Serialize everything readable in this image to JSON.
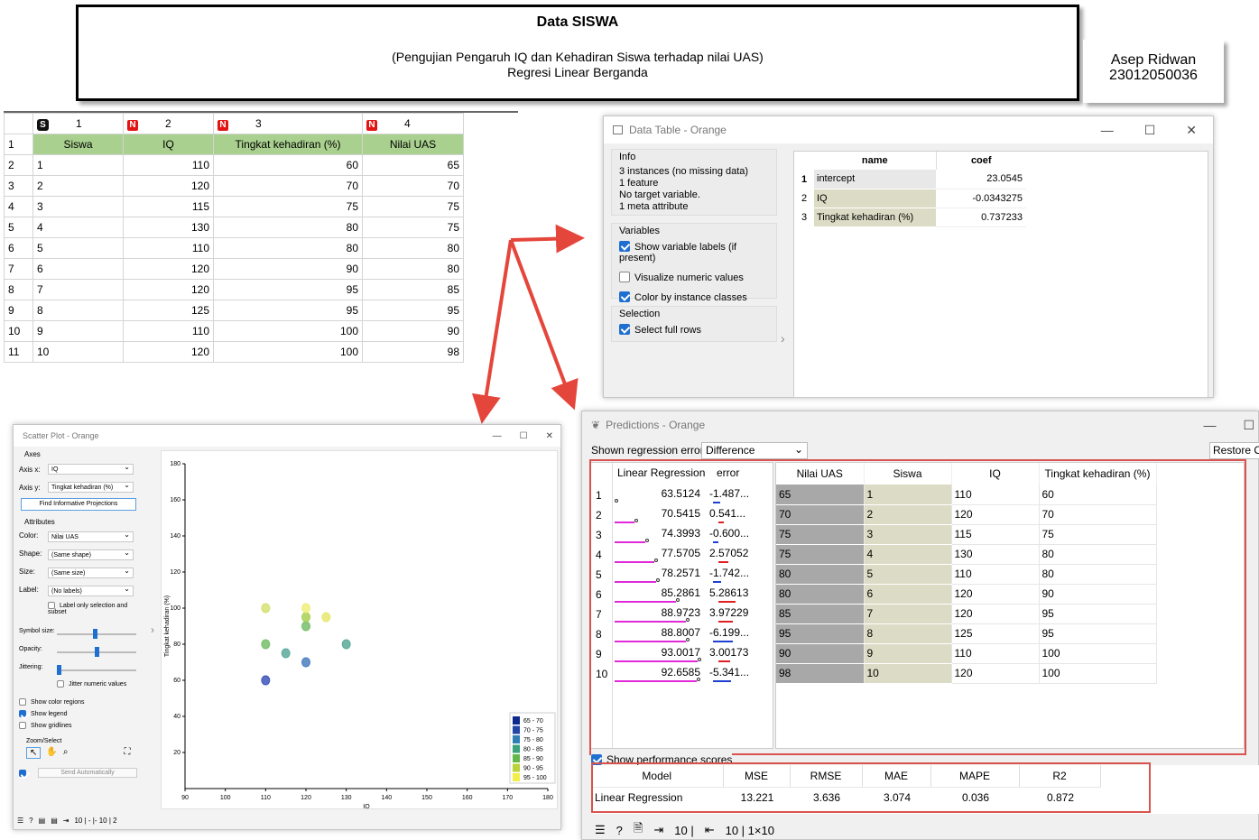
{
  "title": {
    "main": "Data SISWA",
    "subtitle": "(Pengujian Pengaruh IQ dan Kehadiran Siswa terhadap nilai UAS)",
    "method": "Regresi Linear Berganda"
  },
  "author": {
    "name": "Asep Ridwan",
    "id": "23012050036"
  },
  "sheet": {
    "col_nums": [
      "1",
      "2",
      "3",
      "4"
    ],
    "col_badges": [
      "S",
      "N",
      "N",
      "N"
    ],
    "headers": [
      "Siswa",
      "IQ",
      "Tingkat kehadiran (%)",
      "Nilai UAS"
    ],
    "rows": [
      [
        "1",
        "110",
        "60",
        "65"
      ],
      [
        "2",
        "120",
        "70",
        "70"
      ],
      [
        "3",
        "115",
        "75",
        "75"
      ],
      [
        "4",
        "130",
        "80",
        "75"
      ],
      [
        "5",
        "110",
        "80",
        "80"
      ],
      [
        "6",
        "120",
        "90",
        "80"
      ],
      [
        "7",
        "120",
        "95",
        "85"
      ],
      [
        "8",
        "125",
        "95",
        "95"
      ],
      [
        "9",
        "110",
        "100",
        "90"
      ],
      [
        "10",
        "120",
        "100",
        "98"
      ]
    ],
    "row_nums": [
      "1",
      "2",
      "3",
      "4",
      "5",
      "6",
      "7",
      "8",
      "9",
      "10",
      "11"
    ]
  },
  "datatable": {
    "title": "Data Table - Orange",
    "info_title": "Info",
    "info_lines": [
      "3 instances (no missing data)",
      "1  feature",
      "No target variable.",
      "1 meta attribute"
    ],
    "variables_title": "Variables",
    "opt_labels": "Show variable labels (if present)",
    "opt_visualize": "Visualize numeric values",
    "opt_color": "Color by instance classes",
    "selection_title": "Selection",
    "opt_fullrows": "Select full rows",
    "cols": [
      "name",
      "coef"
    ],
    "rows": [
      [
        "1",
        "intercept",
        "23.0545"
      ],
      [
        "2",
        "IQ",
        "-0.0343275"
      ],
      [
        "3",
        "Tingkat kehadiran (%)",
        "0.737233"
      ]
    ]
  },
  "bg_text": "Data Table",
  "predictions": {
    "title": "Predictions - Orange",
    "err_label": "Shown regression error:",
    "err_value": "Difference",
    "restore": "Restore Ori",
    "left_cols": [
      "Linear Regression",
      "error"
    ],
    "right_cols": [
      "Nilai UAS",
      "Siswa",
      "IQ",
      "Tingkat kehadiran (%)"
    ],
    "rows": [
      {
        "n": "1",
        "pred": "63.5124",
        "err": "-1.487...",
        "uas": "65",
        "s": "1",
        "iq": "110",
        "th": "60",
        "frac": 0.0,
        "e": -1.487
      },
      {
        "n": "2",
        "pred": "70.5415",
        "err": "0.541...",
        "uas": "70",
        "s": "2",
        "iq": "120",
        "th": "70",
        "frac": 0.24,
        "e": 0.541
      },
      {
        "n": "3",
        "pred": "74.3993",
        "err": "-0.600...",
        "uas": "75",
        "s": "3",
        "iq": "115",
        "th": "75",
        "frac": 0.37,
        "e": -0.6
      },
      {
        "n": "4",
        "pred": "77.5705",
        "err": "2.57052",
        "uas": "75",
        "s": "4",
        "iq": "130",
        "th": "80",
        "frac": 0.48,
        "e": 2.57
      },
      {
        "n": "5",
        "pred": "78.2571",
        "err": "-1.742...",
        "uas": "80",
        "s": "5",
        "iq": "110",
        "th": "80",
        "frac": 0.5,
        "e": -1.742
      },
      {
        "n": "6",
        "pred": "85.2861",
        "err": "5.28613",
        "uas": "80",
        "s": "6",
        "iq": "120",
        "th": "90",
        "frac": 0.74,
        "e": 5.286
      },
      {
        "n": "7",
        "pred": "88.9723",
        "err": "3.97229",
        "uas": "85",
        "s": "7",
        "iq": "120",
        "th": "95",
        "frac": 0.86,
        "e": 3.972
      },
      {
        "n": "8",
        "pred": "88.8007",
        "err": "-6.199...",
        "uas": "95",
        "s": "8",
        "iq": "125",
        "th": "95",
        "frac": 0.86,
        "e": -6.199
      },
      {
        "n": "9",
        "pred": "93.0017",
        "err": "3.00173",
        "uas": "90",
        "s": "9",
        "iq": "110",
        "th": "100",
        "frac": 1.0,
        "e": 3.002
      },
      {
        "n": "10",
        "pred": "92.6585",
        "err": "-5.341...",
        "uas": "98",
        "s": "10",
        "iq": "120",
        "th": "100",
        "frac": 0.99,
        "e": -5.341
      }
    ],
    "show_perf": "Show performance scores",
    "score_cols": [
      "Model",
      "MSE",
      "RMSE",
      "MAE",
      "MAPE",
      "R2"
    ],
    "score_row": [
      "Linear Regression",
      "13.221",
      "3.636",
      "3.074",
      "0.036",
      "0.872"
    ],
    "status": [
      "10 |",
      "10 | 1×10"
    ]
  },
  "scatter": {
    "title": "Scatter Plot - Orange",
    "axes_title": "Axes",
    "axis_x_label": "Axis x:",
    "axis_x": "IQ",
    "axis_y_label": "Axis y:",
    "axis_y": "Tingkat kehadiran (%)",
    "find_btn": "Find Informative Projections",
    "attr_title": "Attributes",
    "color_label": "Color:",
    "color": "Nilai UAS",
    "shape_label": "Shape:",
    "shape": "(Same shape)",
    "size_label": "Size:",
    "size": "(Same size)",
    "label_label": "Label:",
    "label": "(No labels)",
    "label_only": "Label only selection and subset",
    "symbol_size": "Symbol size:",
    "opacity": "Opacity:",
    "jittering": "Jittering:",
    "jitter_num": "Jitter numeric values",
    "show_color_regions": "Show color regions",
    "show_legend": "Show legend",
    "show_gridlines": "Show gridlines",
    "zoom_title": "Zoom/Select",
    "send_auto": "Send Automatically",
    "status": "10 | - |-   10 | 2",
    "xlabel": "IQ",
    "ylabel": "Tingkat kehadiran (%)",
    "legend": [
      "65 - 70",
      "70 - 75",
      "75 - 80",
      "80 - 85",
      "85 - 90",
      "90 - 95",
      "95 - 100"
    ],
    "legend_colors": [
      "#0d2a8c",
      "#2246a6",
      "#2f7fb5",
      "#3aa37b",
      "#63b84a",
      "#b8d43a",
      "#f2ee4a"
    ]
  },
  "chart_data": {
    "type": "scatter",
    "xlabel": "IQ",
    "ylabel": "Tingkat kehadiran (%)",
    "xlim": [
      90,
      180
    ],
    "ylim": [
      0,
      180
    ],
    "xticks": [
      "90",
      "100",
      "110",
      "120",
      "130",
      "140",
      "150",
      "160",
      "170",
      "180"
    ],
    "yticks": [
      "20",
      "40",
      "60",
      "80",
      "100",
      "120",
      "140",
      "160",
      "180"
    ],
    "points": [
      {
        "x": 110,
        "y": 60,
        "c": "#3e55b8"
      },
      {
        "x": 120,
        "y": 70,
        "c": "#4a7fc0"
      },
      {
        "x": 115,
        "y": 75,
        "c": "#5aaa9b"
      },
      {
        "x": 130,
        "y": 80,
        "c": "#5aaa9b"
      },
      {
        "x": 110,
        "y": 80,
        "c": "#76bf6a"
      },
      {
        "x": 120,
        "y": 90,
        "c": "#76bf6a"
      },
      {
        "x": 120,
        "y": 95,
        "c": "#a8d053"
      },
      {
        "x": 125,
        "y": 95,
        "c": "#e6e86e"
      },
      {
        "x": 110,
        "y": 100,
        "c": "#d6e072"
      },
      {
        "x": 120,
        "y": 100,
        "c": "#eeee7a"
      }
    ]
  }
}
